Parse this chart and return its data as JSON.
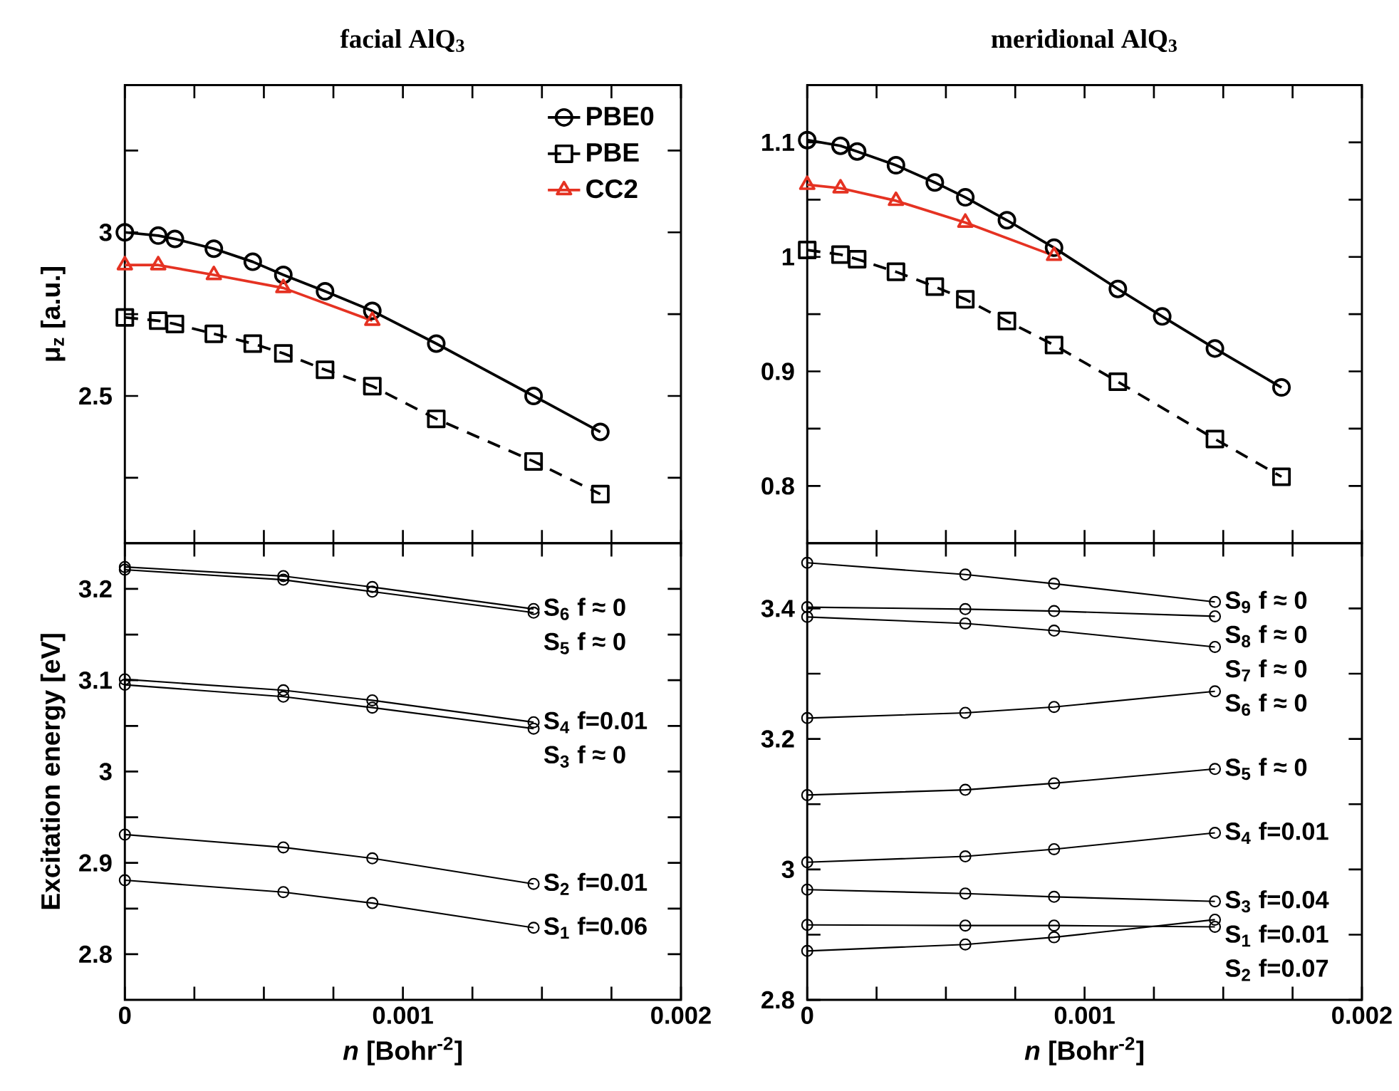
{
  "chart_data": [
    {
      "type": "line",
      "title": "facial AlQ$_{3}$",
      "ylabel": "μ$_{z}$ [a.u.]",
      "xlim": [
        0,
        0.002
      ],
      "ylim": [
        2.05,
        3.45
      ],
      "xticks": [
        {
          "value": 0,
          "label": null
        },
        {
          "value": 0.00025,
          "label": null
        },
        {
          "value": 0.0005,
          "label": null
        },
        {
          "value": 0.00075,
          "label": null
        },
        {
          "value": 0.001,
          "label": null
        },
        {
          "value": 0.00125,
          "label": null
        },
        {
          "value": 0.0015,
          "label": null
        },
        {
          "value": 0.00175,
          "label": null
        },
        {
          "value": 0.002,
          "label": null
        }
      ],
      "yticks": [
        {
          "value": 2.25,
          "label": null
        },
        2.5,
        {
          "value": 2.75,
          "label": null
        },
        3,
        {
          "value": 3.25,
          "label": null
        }
      ],
      "tick_labels": "y",
      "legend": "top right",
      "series": [
        {
          "name": "PBE0",
          "color": "#000000",
          "marker": "circle",
          "line_style": "solid",
          "x": [
            0,
            0.00012,
            0.00018,
            0.00032,
            0.00046,
            0.00057,
            0.00072,
            0.00089,
            0.00112,
            0.00147,
            0.00171
          ],
          "values": [
            3.0,
            2.99,
            2.98,
            2.95,
            2.91,
            2.87,
            2.82,
            2.76,
            2.66,
            2.5,
            2.39
          ]
        },
        {
          "name": "PBE",
          "color": "#000000",
          "marker": "square",
          "line_style": "dashed",
          "x": [
            0,
            0.00012,
            0.00018,
            0.00032,
            0.00046,
            0.00057,
            0.00072,
            0.00089,
            0.00112,
            0.00147,
            0.00171
          ],
          "values": [
            2.74,
            2.73,
            2.72,
            2.69,
            2.66,
            2.63,
            2.58,
            2.53,
            2.43,
            2.3,
            2.2
          ]
        },
        {
          "name": "CC2",
          "color": "#e53222",
          "marker": "triangle",
          "line_style": "solid",
          "x": [
            0,
            0.00012,
            0.00032,
            0.00057,
            0.00089
          ],
          "values": [
            2.9,
            2.9,
            2.87,
            2.83,
            2.73
          ]
        }
      ]
    },
    {
      "type": "line",
      "title": "meridional AlQ$_{3}$",
      "xlim": [
        0,
        0.002
      ],
      "ylim": [
        0.75,
        1.15
      ],
      "xticks": [
        {
          "value": 0,
          "label": null
        },
        {
          "value": 0.00025,
          "label": null
        },
        {
          "value": 0.0005,
          "label": null
        },
        {
          "value": 0.00075,
          "label": null
        },
        {
          "value": 0.001,
          "label": null
        },
        {
          "value": 0.00125,
          "label": null
        },
        {
          "value": 0.0015,
          "label": null
        },
        {
          "value": 0.00175,
          "label": null
        },
        {
          "value": 0.002,
          "label": null
        }
      ],
      "yticks": [
        0.8,
        {
          "value": 0.85,
          "label": null
        },
        0.9,
        {
          "value": 0.95,
          "label": null
        },
        1,
        {
          "value": 1.05,
          "label": null
        },
        1.1
      ],
      "tick_labels": "y",
      "series": [
        {
          "color": "#000000",
          "marker": "circle",
          "line_style": "solid",
          "x": [
            0,
            0.00012,
            0.00018,
            0.00032,
            0.00046,
            0.00057,
            0.00072,
            0.00089,
            0.00112,
            0.00128,
            0.00147,
            0.00171
          ],
          "values": [
            1.102,
            1.097,
            1.092,
            1.08,
            1.065,
            1.052,
            1.032,
            1.008,
            0.972,
            0.948,
            0.92,
            0.886
          ]
        },
        {
          "color": "#000000",
          "marker": "square",
          "line_style": "dashed",
          "x": [
            0,
            0.00012,
            0.00018,
            0.00032,
            0.00046,
            0.00057,
            0.00072,
            0.00089,
            0.00112,
            0.00147,
            0.00171
          ],
          "values": [
            1.006,
            1.002,
            0.998,
            0.987,
            0.974,
            0.963,
            0.944,
            0.923,
            0.891,
            0.841,
            0.808
          ]
        },
        {
          "color": "#e53222",
          "marker": "triangle",
          "line_style": "solid",
          "x": [
            0,
            0.00012,
            0.00032,
            0.00057,
            0.00089
          ],
          "values": [
            1.063,
            1.06,
            1.049,
            1.03,
            1.001
          ]
        }
      ]
    },
    {
      "type": "line",
      "xlabel": "*n* [Bohr$^{-2}$]",
      "ylabel": "Excitation energy [eV]",
      "xlim": [
        0,
        0.002
      ],
      "ylim": [
        2.75,
        3.25
      ],
      "xticks": [
        0,
        {
          "value": 0.00025,
          "label": null
        },
        {
          "value": 0.0005,
          "label": null
        },
        {
          "value": 0.00075,
          "label": null
        },
        0.001,
        {
          "value": 0.00125,
          "label": null
        },
        {
          "value": 0.0015,
          "label": null
        },
        {
          "value": 0.00175,
          "label": null
        },
        0.002
      ],
      "yticks": [
        2.8,
        {
          "value": 2.85,
          "label": null
        },
        2.9,
        {
          "value": 2.95,
          "label": null
        },
        3,
        {
          "value": 3.05,
          "label": null
        },
        3.1,
        {
          "value": 3.15,
          "label": null
        },
        3.2
      ],
      "legend": "right",
      "series": [
        {
          "name": "S$_{1}$ f=0.06",
          "color": "#000000",
          "marker": "circle",
          "line_style": "solid",
          "x": [
            0,
            0.00057,
            0.00089,
            0.00147
          ],
          "values": [
            2.881,
            2.868,
            2.856,
            2.829
          ]
        },
        {
          "name": "S$_{2}$ f=0.01",
          "color": "#000000",
          "marker": "circle",
          "line_style": "solid",
          "x": [
            0,
            0.00057,
            0.00089,
            0.00147
          ],
          "values": [
            2.931,
            2.917,
            2.905,
            2.877
          ]
        },
        {
          "name": "S$_{3}$ f ≈ 0",
          "color": "#000000",
          "marker": "circle",
          "line_style": "solid",
          "x": [
            0,
            0.00057,
            0.00089,
            0.00147
          ],
          "values": [
            3.095,
            3.082,
            3.07,
            3.047
          ]
        },
        {
          "name": "S$_{4}$ f=0.01",
          "color": "#000000",
          "marker": "circle",
          "line_style": "solid",
          "x": [
            0,
            0.00057,
            0.00089,
            0.00147
          ],
          "values": [
            3.101,
            3.089,
            3.078,
            3.054
          ]
        },
        {
          "name": "S$_{5}$ f ≈ 0",
          "color": "#000000",
          "marker": "circle",
          "line_style": "solid",
          "x": [
            0,
            0.00057,
            0.00089,
            0.00147
          ],
          "values": [
            3.221,
            3.21,
            3.197,
            3.174
          ]
        },
        {
          "name": "S$_{6}$ f ≈ 0",
          "color": "#000000",
          "marker": "circle",
          "line_style": "solid",
          "x": [
            0,
            0.00057,
            0.00089,
            0.00147
          ],
          "values": [
            3.224,
            3.214,
            3.202,
            3.178
          ]
        }
      ]
    },
    {
      "type": "line",
      "xlabel": "*n* [Bohr$^{-2}$]",
      "xlim": [
        0,
        0.002
      ],
      "ylim": [
        2.8,
        3.5
      ],
      "xticks": [
        0,
        {
          "value": 0.00025,
          "label": null
        },
        {
          "value": 0.0005,
          "label": null
        },
        {
          "value": 0.00075,
          "label": null
        },
        0.001,
        {
          "value": 0.00125,
          "label": null
        },
        {
          "value": 0.0015,
          "label": null
        },
        {
          "value": 0.00175,
          "label": null
        },
        0.002
      ],
      "yticks": [
        2.8,
        {
          "value": 2.9,
          "label": null
        },
        3,
        {
          "value": 3.1,
          "label": null
        },
        3.2,
        {
          "value": 3.3,
          "label": null
        },
        3.4
      ],
      "legend": "right",
      "series": [
        {
          "name": "S$_{1}$ f=0.01",
          "color": "#000000",
          "marker": "circle",
          "line_style": "solid",
          "x": [
            0,
            0.00057,
            0.00089,
            0.00147
          ],
          "values": [
            2.875,
            2.885,
            2.896,
            2.923
          ]
        },
        {
          "name": "S$_{2}$ f=0.07",
          "color": "#000000",
          "marker": "circle",
          "line_style": "solid",
          "x": [
            0,
            0.00057,
            0.00089,
            0.00147
          ],
          "values": [
            2.915,
            2.914,
            2.914,
            2.912
          ]
        },
        {
          "name": "S$_{3}$ f=0.04",
          "color": "#000000",
          "marker": "circle",
          "line_style": "solid",
          "x": [
            0,
            0.00057,
            0.00089,
            0.00147
          ],
          "values": [
            2.969,
            2.963,
            2.958,
            2.951
          ]
        },
        {
          "name": "S$_{4}$ f=0.01",
          "color": "#000000",
          "marker": "circle",
          "line_style": "solid",
          "x": [
            0,
            0.00057,
            0.00089,
            0.00147
          ],
          "values": [
            3.011,
            3.02,
            3.031,
            3.056
          ]
        },
        {
          "name": "S$_{5}$ f ≈ 0",
          "color": "#000000",
          "marker": "circle",
          "line_style": "solid",
          "x": [
            0,
            0.00057,
            0.00089,
            0.00147
          ],
          "values": [
            3.114,
            3.122,
            3.132,
            3.154
          ]
        },
        {
          "name": "S$_{6}$ f ≈ 0",
          "color": "#000000",
          "marker": "circle",
          "line_style": "solid",
          "x": [
            0,
            0.00057,
            0.00089,
            0.00147
          ],
          "values": [
            3.232,
            3.24,
            3.249,
            3.273
          ]
        },
        {
          "name": "S$_{7}$ f ≈ 0",
          "color": "#000000",
          "marker": "circle",
          "line_style": "solid",
          "x": [
            0,
            0.00057,
            0.00089,
            0.00147
          ],
          "values": [
            3.387,
            3.377,
            3.366,
            3.341
          ]
        },
        {
          "name": "S$_{8}$ f ≈ 0",
          "color": "#000000",
          "marker": "circle",
          "line_style": "solid",
          "x": [
            0,
            0.00057,
            0.00089,
            0.00147
          ],
          "values": [
            3.402,
            3.399,
            3.396,
            3.388
          ]
        },
        {
          "name": "S$_{9}$ f ≈ 0",
          "color": "#000000",
          "marker": "circle",
          "line_style": "solid",
          "x": [
            0,
            0.00057,
            0.00089,
            0.00147
          ],
          "values": [
            3.47,
            3.452,
            3.438,
            3.41
          ]
        }
      ]
    }
  ]
}
